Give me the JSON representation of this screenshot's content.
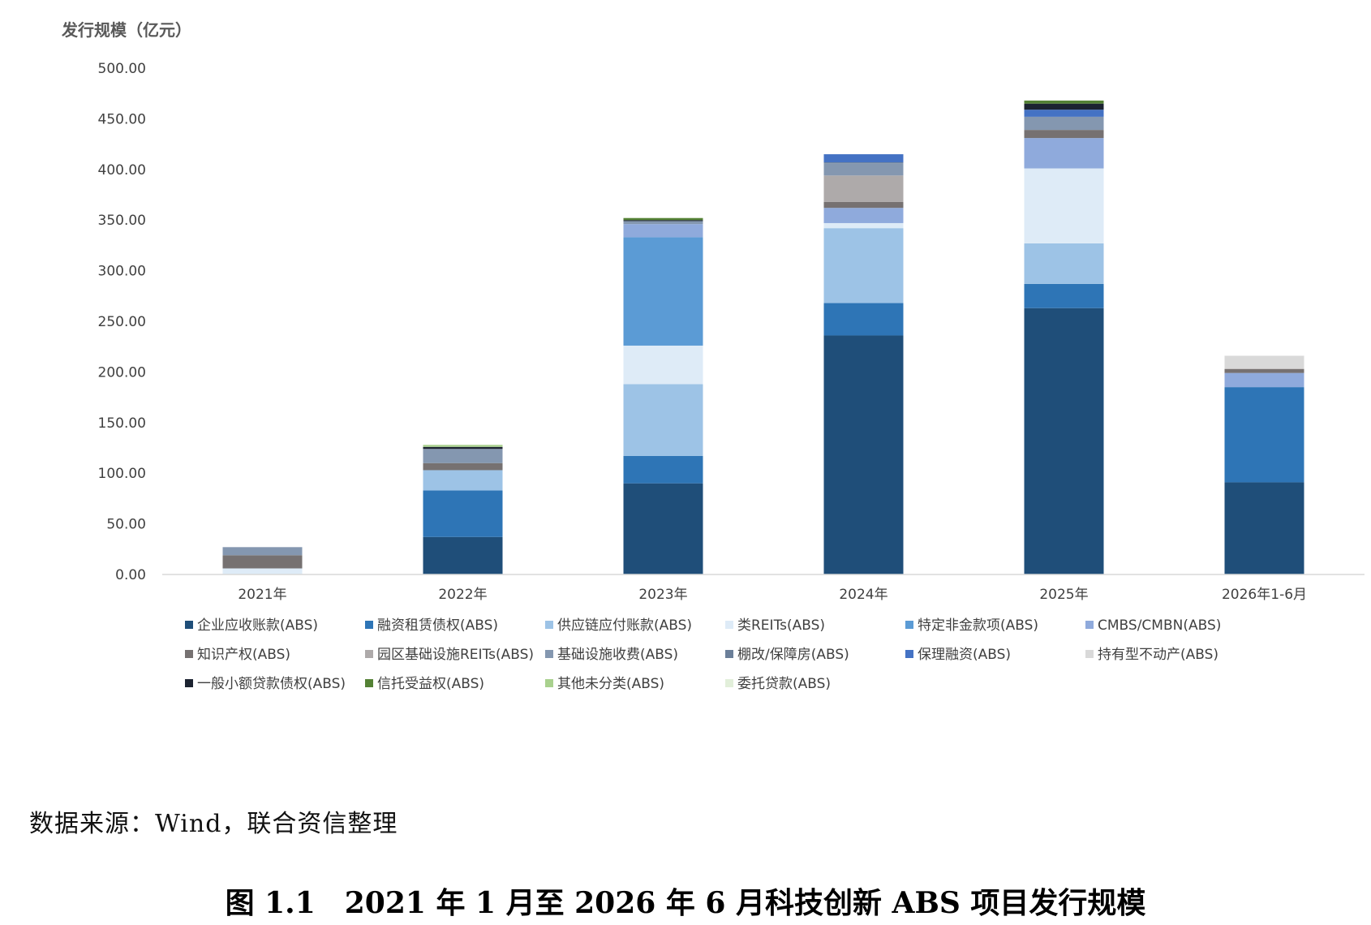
{
  "chart_data": {
    "type": "bar",
    "stacked": true,
    "y_unit_label": "发行规模（亿元）",
    "ylim": [
      0,
      500
    ],
    "y_ticks": [
      "0.00",
      "50.00",
      "100.00",
      "150.00",
      "200.00",
      "250.00",
      "300.00",
      "350.00",
      "400.00",
      "450.00",
      "500.00"
    ],
    "y_tick_values": [
      0,
      50,
      100,
      150,
      200,
      250,
      300,
      350,
      400,
      450,
      500
    ],
    "grid": false,
    "legend_position": "bottom",
    "categories": [
      "2021年",
      "2022年",
      "2023年",
      "2024年",
      "2025年",
      "2026年1-6月"
    ],
    "series": [
      {
        "name": "企业应收账款(ABS)",
        "color": "#1f4e79",
        "values": [
          0,
          37,
          90,
          236,
          263,
          91
        ]
      },
      {
        "name": "融资租赁债权(ABS)",
        "color": "#2e75b6",
        "values": [
          0,
          46,
          27,
          32,
          24,
          94
        ]
      },
      {
        "name": "供应链应付账款(ABS)",
        "color": "#9dc3e6",
        "values": [
          0,
          20,
          71,
          74,
          40,
          0
        ]
      },
      {
        "name": "类REITs(ABS)",
        "color": "#deebf7",
        "values": [
          6,
          0,
          38,
          5,
          74,
          0
        ]
      },
      {
        "name": "特定非金款项(ABS)",
        "color": "#5b9bd5",
        "values": [
          0,
          0,
          107,
          0,
          0,
          0
        ]
      },
      {
        "name": "CMBS/CMBN(ABS)",
        "color": "#8faadc",
        "values": [
          0,
          0,
          13,
          15,
          30,
          14
        ]
      },
      {
        "name": "知识产权(ABS)",
        "color": "#767171",
        "values": [
          13,
          7,
          0,
          6,
          8,
          4
        ]
      },
      {
        "name": "园区基础设施REITs(ABS)",
        "color": "#aeaaaa",
        "values": [
          0,
          0,
          0,
          26,
          0,
          0
        ]
      },
      {
        "name": "基础设施收费(ABS)",
        "color": "#8497b0",
        "values": [
          8,
          14,
          3,
          12,
          13,
          0
        ]
      },
      {
        "name": "棚改/保障房(ABS)",
        "color": "#6b7f99",
        "values": [
          0,
          0,
          0,
          1,
          0,
          0
        ]
      },
      {
        "name": "保理融资(ABS)",
        "color": "#4472c4",
        "values": [
          0,
          0,
          0,
          8,
          7,
          0
        ]
      },
      {
        "name": "持有型不动产(ABS)",
        "color": "#d9d9d9",
        "values": [
          0,
          0,
          0,
          0,
          0,
          13
        ]
      },
      {
        "name": "一般小额贷款债权(ABS)",
        "color": "#1c2331",
        "values": [
          0,
          2,
          1,
          0,
          6,
          0
        ]
      },
      {
        "name": "信托受益权(ABS)",
        "color": "#548235",
        "values": [
          0,
          0,
          2,
          0,
          3,
          0
        ]
      },
      {
        "name": "其他未分类(ABS)",
        "color": "#a9d18e",
        "values": [
          0,
          2,
          0,
          0,
          0,
          0
        ]
      },
      {
        "name": "委托贷款(ABS)",
        "color": "#e2efda",
        "values": [
          0,
          0,
          0,
          0,
          0,
          0
        ]
      }
    ]
  },
  "source_note": "数据来源：Wind，联合资信整理",
  "figure_caption": "图 1.1　2021 年 1 月至 2026 年 6 月科技创新 ABS 项目发行规模"
}
